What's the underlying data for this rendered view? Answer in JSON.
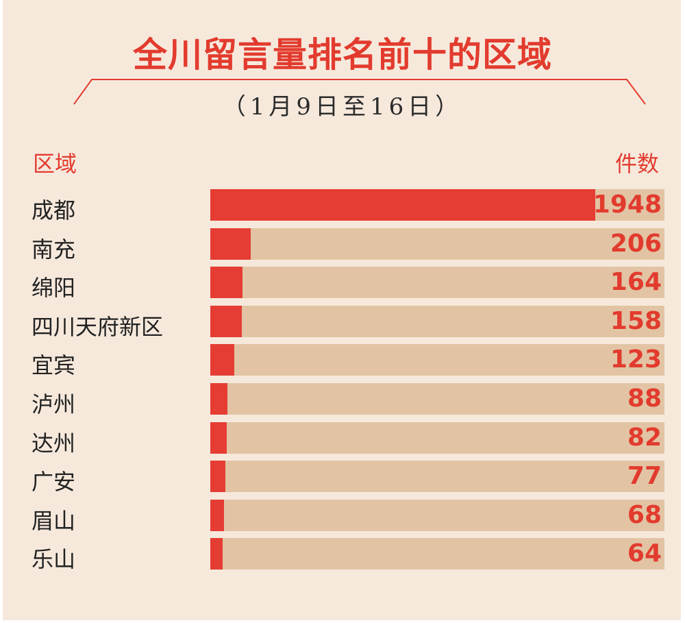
{
  "header": {
    "title": "全川留言量排名前十的区域",
    "subtitle": "（1月9日至16日）",
    "col_left": "区域",
    "col_right": "件数"
  },
  "colors": {
    "background": "#f6e9dc",
    "accent": "#e23b2e",
    "bar": "#e53d33",
    "track": "#e2c4a4",
    "text": "#222222"
  },
  "chart_data": {
    "type": "bar",
    "orientation": "horizontal",
    "title": "全川留言量排名前十的区域",
    "subtitle": "（1月9日至16日）",
    "xlabel": "件数",
    "ylabel": "区域",
    "xlim": [
      0,
      2300
    ],
    "grid": false,
    "categories": [
      "成都",
      "南充",
      "绵阳",
      "四川天府新区",
      "宜宾",
      "泸州",
      "达州",
      "广安",
      "眉山",
      "乐山"
    ],
    "values": [
      1948,
      206,
      164,
      158,
      123,
      88,
      82,
      77,
      68,
      64
    ]
  }
}
